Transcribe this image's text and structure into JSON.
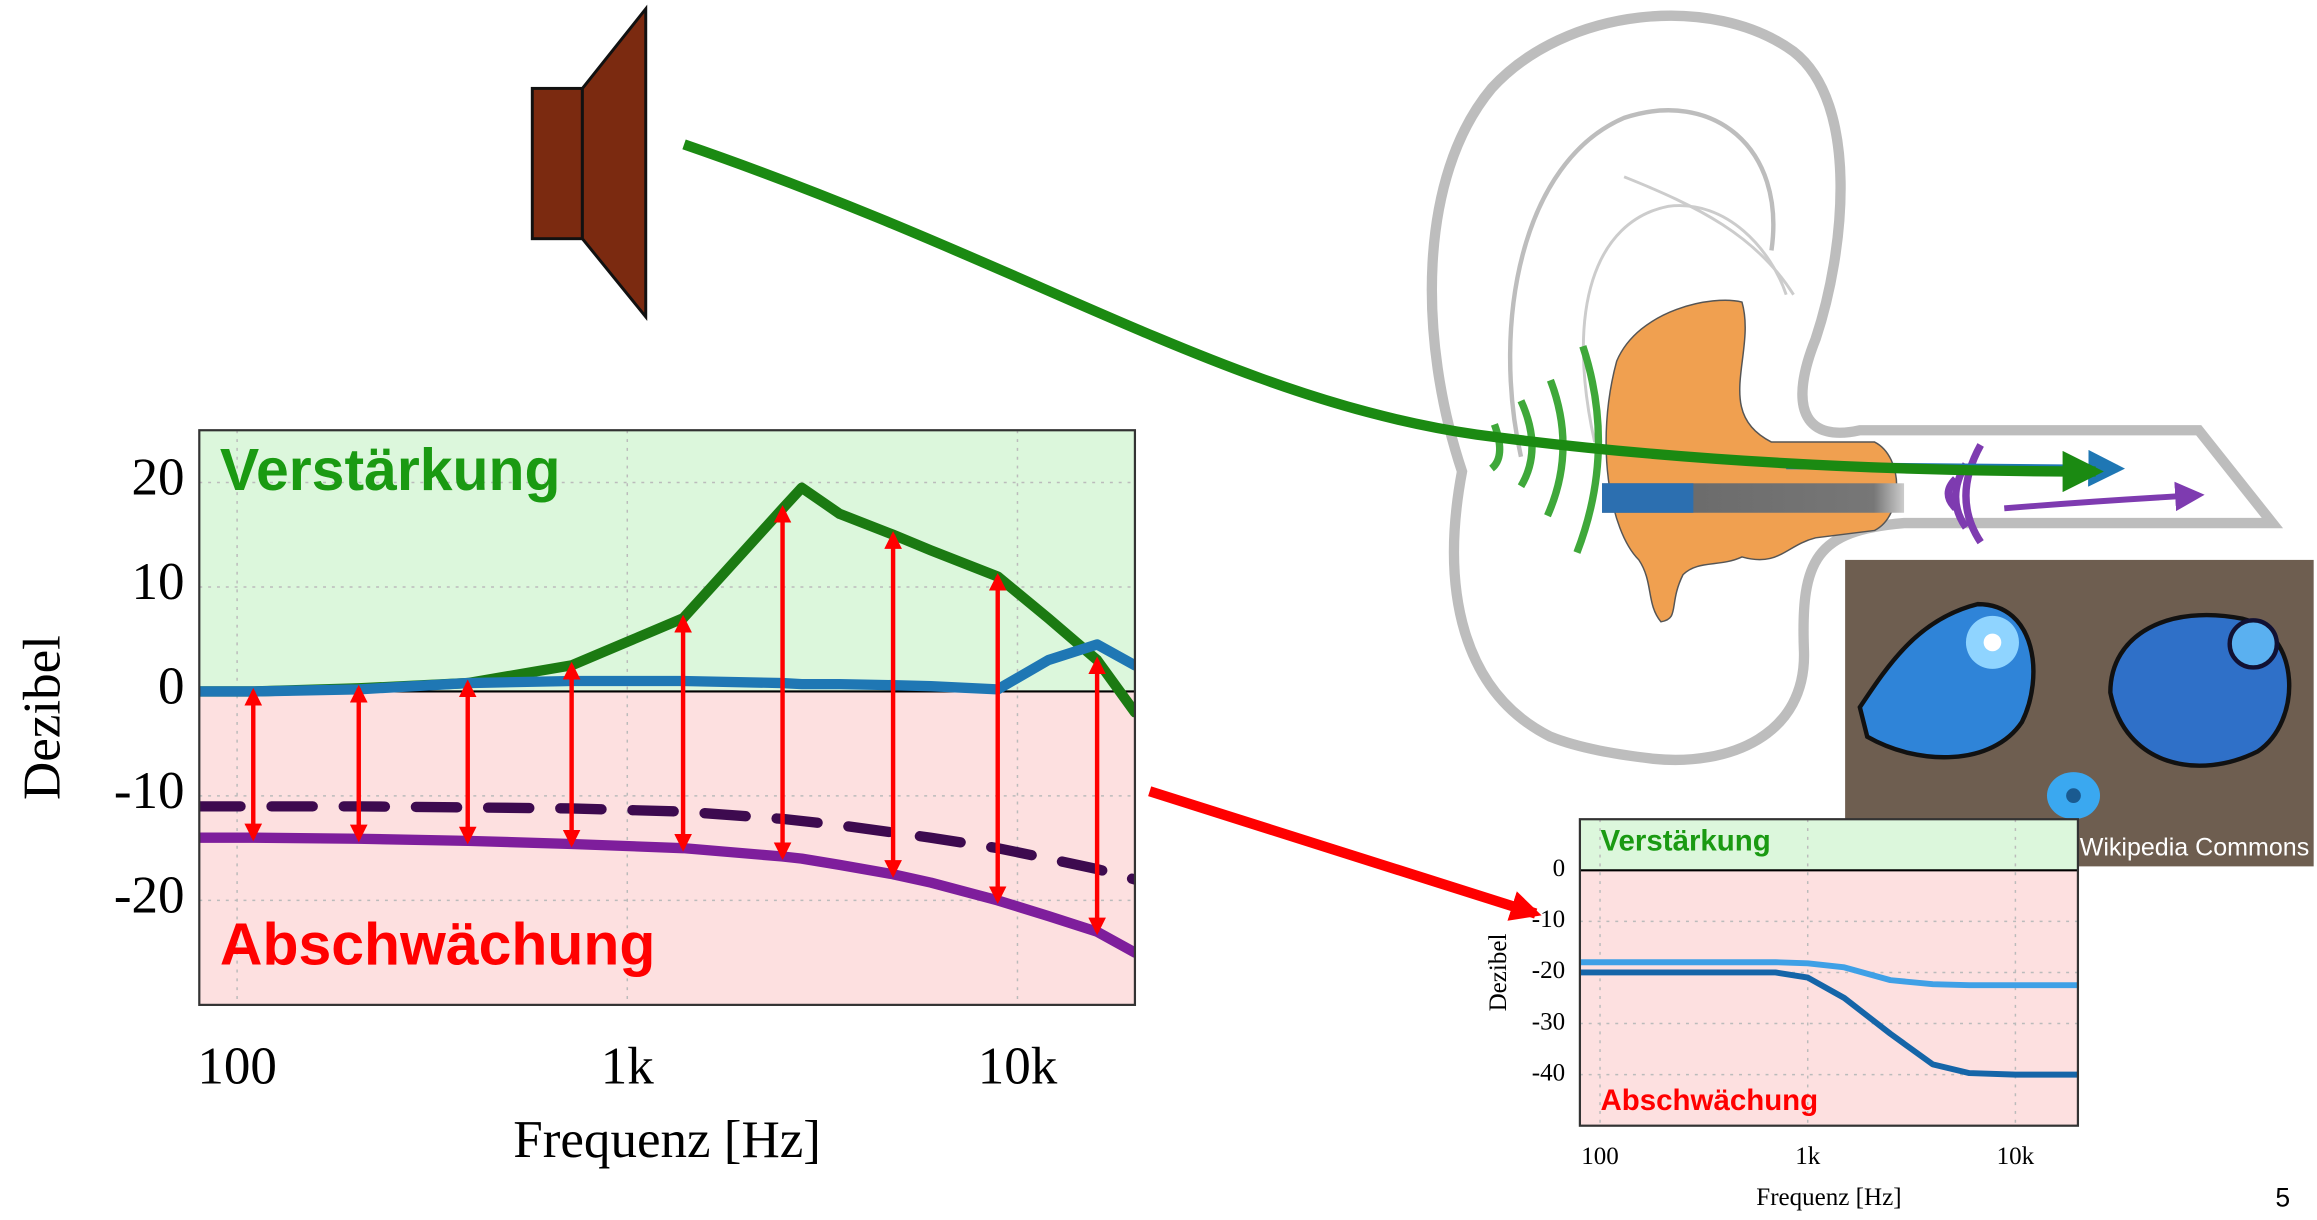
{
  "chart_data": [
    {
      "type": "line",
      "xlabel": "Frequenz [Hz]",
      "ylabel": "Dezibel",
      "annotations": [
        "Verstärkung",
        "Abschwächung"
      ],
      "x": [
        80,
        110,
        205,
        390,
        720,
        1390,
        2500,
        2800,
        3500,
        4800,
        6000,
        8900,
        12000,
        16000,
        20000
      ],
      "xlog": true,
      "xlim": [
        80,
        20000
      ],
      "xticks": [
        100,
        {
          "value": 1000,
          "label": "1k"
        },
        {
          "value": 10000,
          "label": "10k"
        }
      ],
      "ylim": [
        -30,
        25
      ],
      "yticks": [
        -20,
        -10,
        0,
        10,
        20
      ],
      "grid": true,
      "series": [
        {
          "color": "#1b7a12",
          "values": [
            0,
            0,
            0.3,
            0.8,
            2.5,
            7,
            17.5,
            19.5,
            17,
            15,
            13.5,
            11,
            7,
            3,
            -2
          ]
        },
        {
          "color": "#1f77b4",
          "values": [
            0,
            0,
            0.2,
            0.8,
            1,
            1,
            0.8,
            0.7,
            0.7,
            0.6,
            0.5,
            0.2,
            3,
            4.5,
            2.5
          ]
        },
        {
          "color": "#7e1e9c",
          "values": [
            -14,
            -14,
            -14.1,
            -14.3,
            -14.6,
            -15,
            -15.8,
            -16,
            -16.6,
            -17.5,
            -18.3,
            -20,
            -21.5,
            -23,
            -25
          ]
        },
        {
          "color": "#3d0a4f",
          "dashed": true,
          "values": [
            -11,
            -11,
            -11,
            -11.1,
            -11.2,
            -11.5,
            -12.2,
            -12.4,
            -12.8,
            -13.5,
            -14,
            -15,
            -16,
            -17,
            -18
          ]
        }
      ]
    },
    {
      "type": "line",
      "xlabel": "Frequenz [Hz]",
      "ylabel": "Dezibel",
      "annotations": [
        "Verstärkung",
        "Abschwächung"
      ],
      "x": [
        80,
        300,
        700,
        1000,
        1500,
        2500,
        4000,
        6000,
        10000,
        20000
      ],
      "xlog": true,
      "xlim": [
        80,
        20000
      ],
      "xticks": [
        100,
        {
          "value": 1000,
          "label": "1k"
        },
        {
          "value": 10000,
          "label": "10k"
        }
      ],
      "ylim": [
        -50,
        10
      ],
      "yticks": [
        0,
        -10,
        -20,
        -30,
        -40
      ],
      "grid": true,
      "series": [
        {
          "color": "#3fa0e6",
          "values": [
            -18,
            -18,
            -18,
            -18.2,
            -19,
            -21.5,
            -22.3,
            -22.5,
            -22.5,
            -22.5
          ]
        },
        {
          "color": "#1565a8",
          "values": [
            -20,
            -20,
            -20,
            -21,
            -25,
            -32,
            -38,
            -39.7,
            -40,
            -40
          ]
        }
      ]
    }
  ],
  "photo_credit": "Wikipedia Commons",
  "page_number": "5"
}
